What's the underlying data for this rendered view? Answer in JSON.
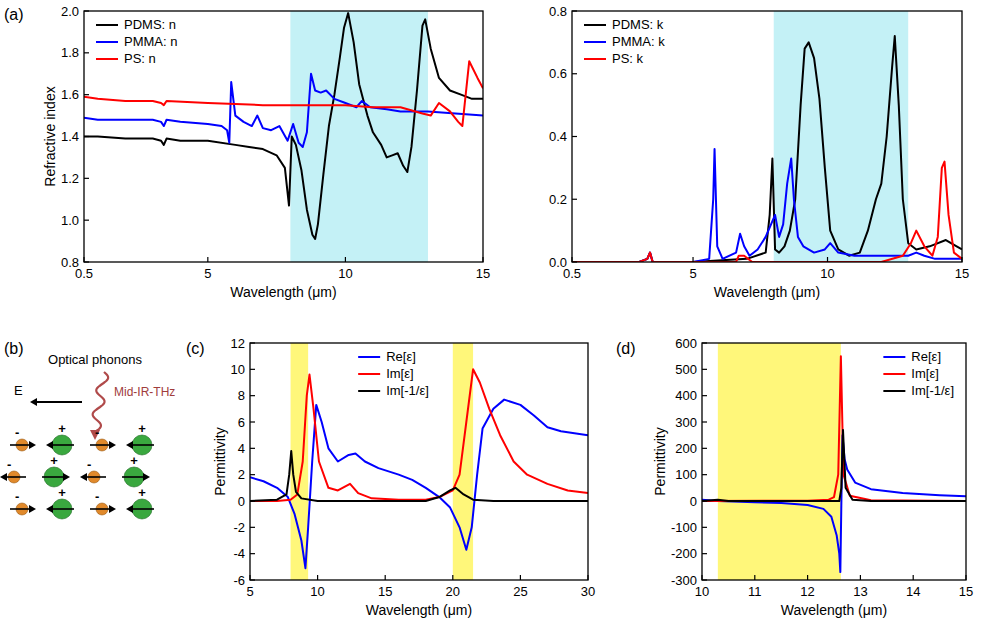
{
  "chart_data": [
    {
      "type": "line",
      "panel_label": "(a)",
      "x_label": "Wavelength (μm)",
      "y_label": "Refractive index",
      "xlim": [
        0.5,
        15
      ],
      "xticks": [
        0.5,
        5,
        10,
        15
      ],
      "ylim": [
        0.8,
        2.0
      ],
      "yticks": [
        0.8,
        {
          "value": 1,
          "label": "1.0"
        },
        1.2,
        1.4,
        1.6,
        1.8,
        {
          "value": 2,
          "label": "2.0"
        }
      ],
      "grid": false,
      "legend": "upper left",
      "bands": [
        {
          "range": [
            8,
            13
          ],
          "color": "#c4f1f6"
        }
      ],
      "series": [
        {
          "name": "PDMS: n",
          "color": "#000000",
          "x": [
            0.5,
            1,
            2,
            3,
            3.3,
            3.4,
            3.5,
            4,
            5,
            6,
            6.5,
            7,
            7.5,
            7.8,
            7.95,
            8.05,
            8.2,
            8.4,
            8.6,
            8.8,
            8.9,
            9.0,
            9.2,
            9.4,
            9.6,
            9.8,
            9.95,
            10.1,
            10.3,
            10.5,
            10.8,
            11.0,
            11.3,
            11.5,
            11.7,
            11.9,
            12.1,
            12.25,
            12.4,
            12.6,
            12.8,
            12.9,
            13.1,
            13.4,
            13.8,
            14.2,
            14.6,
            15
          ],
          "values": [
            1.4,
            1.4,
            1.39,
            1.39,
            1.38,
            1.36,
            1.39,
            1.38,
            1.38,
            1.36,
            1.35,
            1.34,
            1.31,
            1.25,
            1.07,
            1.4,
            1.36,
            1.24,
            1.05,
            0.93,
            0.91,
            0.98,
            1.22,
            1.45,
            1.6,
            1.78,
            1.92,
            1.99,
            1.85,
            1.65,
            1.5,
            1.42,
            1.36,
            1.3,
            1.31,
            1.32,
            1.26,
            1.23,
            1.35,
            1.62,
            1.93,
            1.96,
            1.82,
            1.68,
            1.62,
            1.6,
            1.58,
            1.58
          ]
        },
        {
          "name": "PMMA: n",
          "color": "#0000ff",
          "x": [
            0.5,
            1,
            2,
            3,
            3.3,
            3.4,
            3.5,
            4,
            5,
            5.5,
            5.7,
            5.78,
            5.85,
            6.0,
            6.3,
            6.6,
            6.8,
            7.0,
            7.3,
            7.6,
            7.9,
            8.1,
            8.3,
            8.45,
            8.6,
            8.75,
            8.9,
            9.1,
            9.3,
            9.6,
            10,
            10.4,
            10.6,
            10.9,
            11.5,
            12,
            13,
            14,
            15
          ],
          "values": [
            1.49,
            1.48,
            1.48,
            1.48,
            1.47,
            1.45,
            1.48,
            1.47,
            1.46,
            1.45,
            1.43,
            1.37,
            1.66,
            1.5,
            1.47,
            1.45,
            1.5,
            1.44,
            1.43,
            1.45,
            1.38,
            1.46,
            1.37,
            1.35,
            1.42,
            1.7,
            1.62,
            1.61,
            1.62,
            1.58,
            1.56,
            1.54,
            1.57,
            1.54,
            1.53,
            1.52,
            1.52,
            1.51,
            1.5
          ]
        },
        {
          "name": "PS: n",
          "color": "#ff0000",
          "x": [
            0.5,
            1,
            2,
            3,
            3.3,
            3.4,
            3.5,
            5,
            7,
            9,
            10,
            11,
            12,
            12.8,
            13.1,
            13.4,
            13.8,
            14.1,
            14.25,
            14.5,
            14.8,
            15
          ],
          "values": [
            1.59,
            1.58,
            1.57,
            1.57,
            1.56,
            1.55,
            1.57,
            1.56,
            1.55,
            1.55,
            1.55,
            1.54,
            1.54,
            1.51,
            1.5,
            1.56,
            1.52,
            1.47,
            1.45,
            1.76,
            1.68,
            1.63
          ]
        }
      ]
    },
    {
      "type": "line",
      "x_label": "Wavelength (μm)",
      "xlim": [
        0.5,
        15
      ],
      "xticks": [
        0.5,
        5,
        10,
        15
      ],
      "ylim": [
        0,
        0.8
      ],
      "yticks": [
        {
          "value": 0,
          "label": "0.0"
        },
        0.2,
        0.4,
        0.6,
        0.8
      ],
      "grid": false,
      "legend": "upper left",
      "bands": [
        {
          "range": [
            8,
            13
          ],
          "color": "#c4f1f6"
        }
      ],
      "series": [
        {
          "name": "PDMS: k",
          "color": "#000000",
          "x": [
            0.5,
            3,
            3.3,
            3.4,
            3.5,
            5,
            7,
            7.7,
            7.85,
            7.95,
            8.05,
            8.2,
            8.4,
            8.6,
            8.8,
            9.0,
            9.15,
            9.3,
            9.5,
            9.7,
            9.9,
            10.1,
            10.4,
            10.8,
            11.2,
            11.5,
            11.8,
            12.0,
            12.2,
            12.4,
            12.5,
            12.65,
            12.8,
            13.0,
            13.3,
            13.8,
            14.4,
            14.8,
            15
          ],
          "values": [
            0,
            0,
            0.01,
            0.03,
            0,
            0,
            0.01,
            0.03,
            0.15,
            0.33,
            0.04,
            0.03,
            0.05,
            0.1,
            0.2,
            0.5,
            0.68,
            0.7,
            0.65,
            0.52,
            0.3,
            0.1,
            0.04,
            0.02,
            0.03,
            0.1,
            0.2,
            0.25,
            0.4,
            0.62,
            0.72,
            0.5,
            0.2,
            0.06,
            0.04,
            0.05,
            0.07,
            0.05,
            0.04
          ]
        },
        {
          "name": "PMMA: k",
          "color": "#0000ff",
          "x": [
            0.5,
            3,
            3.3,
            3.4,
            3.5,
            5,
            5.6,
            5.75,
            5.8,
            5.9,
            6.1,
            6.6,
            6.75,
            6.9,
            7.1,
            7.4,
            7.7,
            7.9,
            8.05,
            8.2,
            8.35,
            8.5,
            8.65,
            8.75,
            8.9,
            9.1,
            9.5,
            9.9,
            10.1,
            10.4,
            11,
            12,
            13,
            13.3,
            13.6,
            14,
            15
          ],
          "values": [
            0,
            0,
            0.01,
            0.03,
            0,
            0,
            0.01,
            0.2,
            0.36,
            0.05,
            0.01,
            0.03,
            0.09,
            0.05,
            0.02,
            0.04,
            0.08,
            0.12,
            0.15,
            0.08,
            0.12,
            0.25,
            0.33,
            0.2,
            0.08,
            0.05,
            0.03,
            0.04,
            0.06,
            0.03,
            0.02,
            0.02,
            0.02,
            0.03,
            0.02,
            0.01,
            0.01
          ]
        },
        {
          "name": "PS: k",
          "color": "#ff0000",
          "x": [
            0.5,
            3,
            3.3,
            3.4,
            3.5,
            5,
            6.6,
            6.7,
            6.9,
            7.2,
            9,
            12,
            12.8,
            13.1,
            13.3,
            13.6,
            13.9,
            14.1,
            14.25,
            14.35,
            14.5,
            14.7,
            15
          ],
          "values": [
            0,
            0,
            0.01,
            0.03,
            0,
            0,
            0,
            0.02,
            0.02,
            0,
            0,
            0,
            0.02,
            0.06,
            0.1,
            0.05,
            0.02,
            0.08,
            0.3,
            0.32,
            0.15,
            0.03,
            0.01
          ]
        }
      ]
    },
    {
      "type": "line",
      "panel_label": "(c)",
      "x_label": "Wavelength (μm)",
      "y_label": "Permittivity",
      "xlim": [
        5,
        30
      ],
      "xticks": [
        5,
        10,
        15,
        20,
        25,
        30
      ],
      "ylim": [
        -6,
        12
      ],
      "yticks": [
        -6,
        -4,
        -2,
        0,
        2,
        4,
        6,
        8,
        10,
        12
      ],
      "grid": false,
      "legend": "upper center",
      "bands": [
        {
          "range": [
            8,
            9.3
          ],
          "color": "#fff77a"
        },
        {
          "range": [
            20,
            21.5
          ],
          "color": "#fff77a"
        }
      ],
      "series": [
        {
          "name": "Re[ε]",
          "color": "#0000ff",
          "x": [
            5,
            6,
            7,
            7.8,
            8.3,
            8.8,
            9.1,
            9.3,
            9.6,
            9.9,
            10.3,
            10.8,
            11.5,
            12.3,
            12.8,
            13.5,
            14.5,
            16,
            17,
            18,
            19,
            19.8,
            20.5,
            21,
            21.4,
            21.8,
            22.2,
            23,
            23.8,
            25,
            26,
            27,
            28,
            30
          ],
          "values": [
            1.8,
            1.5,
            1.0,
            0.3,
            -1.0,
            -3.0,
            -5.1,
            -2.0,
            3.0,
            7.3,
            6.0,
            4.0,
            3.0,
            3.5,
            3.6,
            3.0,
            2.5,
            2.0,
            1.6,
            1.0,
            0.3,
            -0.5,
            -2.0,
            -3.7,
            -2.0,
            2.0,
            5.5,
            7.0,
            7.7,
            7.3,
            6.5,
            5.6,
            5.3,
            5.0
          ]
        },
        {
          "name": "Im[ε]",
          "color": "#ff0000",
          "x": [
            5,
            7,
            8,
            8.5,
            8.9,
            9.2,
            9.4,
            9.7,
            10.1,
            10.8,
            11.5,
            12.4,
            13,
            14,
            16,
            18,
            19,
            20,
            20.5,
            21,
            21.5,
            22,
            22.7,
            23.5,
            24.5,
            25.5,
            27,
            28.5,
            30
          ],
          "values": [
            0,
            0,
            0.1,
            0.5,
            3,
            8,
            9.6,
            7,
            3,
            1,
            0.8,
            1.3,
            0.6,
            0.2,
            0.1,
            0.1,
            0.3,
            0.8,
            2,
            6,
            10,
            9,
            7,
            5,
            3,
            2,
            1.3,
            0.8,
            0.6
          ]
        },
        {
          "name": "Im[-1/ε]",
          "color": "#000000",
          "x": [
            5,
            7,
            7.7,
            7.9,
            8.05,
            8.2,
            8.4,
            8.8,
            10,
            18,
            19,
            19.8,
            20.2,
            20.8,
            21.5,
            23,
            30
          ],
          "values": [
            0,
            0.1,
            0.5,
            2,
            3.8,
            2,
            0.7,
            0.2,
            0,
            0,
            0.3,
            0.8,
            1.0,
            0.5,
            0.1,
            0,
            0
          ]
        }
      ]
    },
    {
      "type": "line",
      "panel_label": "(d)",
      "x_label": "Wavelength (μm)",
      "y_label": "Permittivity",
      "xlim": [
        10,
        15
      ],
      "xticks": [
        10,
        11,
        12,
        13,
        14,
        15
      ],
      "ylim": [
        -300,
        600
      ],
      "yticks": [
        -300,
        -200,
        -100,
        0,
        100,
        200,
        300,
        400,
        500,
        600
      ],
      "grid": false,
      "legend": "upper right",
      "bands": [
        {
          "range": [
            10.3,
            12.63
          ],
          "color": "#fff77a"
        }
      ],
      "series": [
        {
          "name": "Re[ε]",
          "color": "#0000ff",
          "x": [
            10,
            10.3,
            11,
            11.5,
            12,
            12.3,
            12.45,
            12.55,
            12.6,
            12.62,
            12.64,
            12.66,
            12.7,
            12.75,
            12.9,
            13.2,
            13.8,
            14.5,
            15
          ],
          "values": [
            5,
            0,
            -5,
            -8,
            -15,
            -30,
            -60,
            -130,
            -200,
            -270,
            0,
            250,
            160,
            120,
            70,
            45,
            30,
            22,
            18
          ]
        },
        {
          "name": "Im[ε]",
          "color": "#ff0000",
          "x": [
            10,
            12,
            12.4,
            12.5,
            12.58,
            12.63,
            12.68,
            12.8,
            13.2,
            15
          ],
          "values": [
            0,
            1,
            5,
            15,
            100,
            550,
            100,
            20,
            3,
            0
          ]
        },
        {
          "name": "Im[-1/ε]",
          "color": "#000000",
          "x": [
            10,
            10.3,
            10.5,
            12.6,
            12.64,
            12.67,
            12.72,
            12.85,
            13.2,
            15
          ],
          "values": [
            0,
            5,
            0,
            0,
            50,
            270,
            50,
            5,
            0,
            0
          ]
        }
      ]
    }
  ],
  "diagram": {
    "panel_label": "(b)",
    "title": "Optical phonons",
    "wave_label": "Mid-IR-THz",
    "field_label": "E",
    "ion_charges": [
      "-",
      "+"
    ]
  }
}
